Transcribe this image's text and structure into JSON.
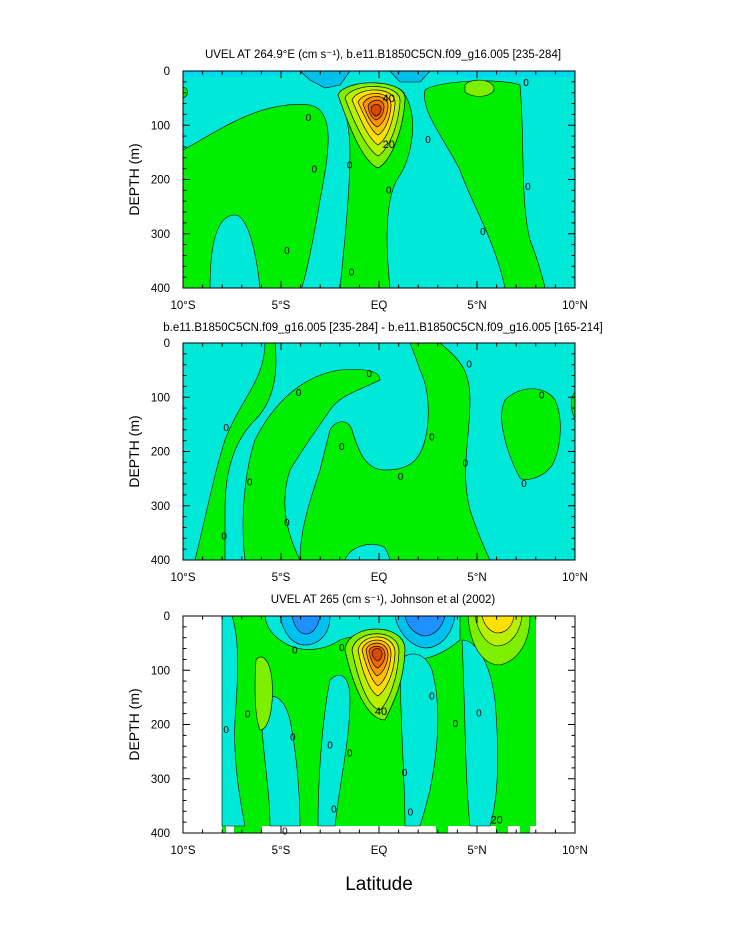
{
  "figure": {
    "xlabel": "Latitude"
  },
  "chart_data": [
    {
      "type": "heatmap",
      "title": "UVEL AT 264.9°E (cm s⁻¹), b.e11.B1850C5CN.f09_g16.005 [235-284]",
      "xlabel": "",
      "ylabel": "DEPTH (m)",
      "xlim": [
        -10,
        10
      ],
      "ylim": [
        0,
        400
      ],
      "y_inverted": true,
      "x_ticks": [
        "10°S",
        "5°S",
        "EQ",
        "5°N",
        "10°N"
      ],
      "y_ticks": [
        0,
        100,
        200,
        300,
        400
      ],
      "contour_interval": 10,
      "contour_labels": [
        "0",
        "0",
        "0",
        "0",
        "0",
        "0",
        "0",
        "0",
        "0",
        "0",
        "20",
        "40"
      ],
      "core": {
        "lat": 0,
        "depth": 75,
        "max_value": 70
      },
      "colors": {
        "neg_strong": "#00bfe8",
        "neg_weak": "#00e8d8",
        "zero": "#00ee00",
        "pos_low": "#7fef00",
        "pos_mid": "#ffe000",
        "pos_high": "#ff9000",
        "pos_max": "#e05000"
      }
    },
    {
      "type": "heatmap",
      "title": "b.e11.B1850C5CN.f09_g16.005 [235-284] - b.e11.B1850C5CN.f09_g16.005 [165-214]",
      "xlabel": "",
      "ylabel": "DEPTH (m)",
      "xlim": [
        -10,
        10
      ],
      "ylim": [
        0,
        400
      ],
      "y_inverted": true,
      "x_ticks": [
        "10°S",
        "5°S",
        "EQ",
        "5°N",
        "10°N"
      ],
      "y_ticks": [
        0,
        100,
        200,
        300,
        400
      ],
      "contour_labels": [
        "0",
        "0",
        "0",
        "0",
        "0",
        "0",
        "0",
        "0",
        "0",
        "0",
        "0",
        "0",
        "0"
      ],
      "colors": {
        "neg_weak": "#00e8d8",
        "zero": "#00ee00"
      }
    },
    {
      "type": "heatmap",
      "title": "UVEL AT 265 (cm s⁻¹), Johnson et al (2002)",
      "xlabel": "",
      "ylabel": "DEPTH (m)",
      "xlim": [
        -10,
        10
      ],
      "ylim": [
        0,
        400
      ],
      "y_inverted": true,
      "x_ticks": [
        "10°S",
        "5°S",
        "EQ",
        "5°N",
        "10°N"
      ],
      "y_ticks": [
        0,
        100,
        200,
        300,
        400
      ],
      "data_lat_range": [
        -8,
        8
      ],
      "contour_interval": 10,
      "contour_labels": [
        "0",
        "0",
        "0",
        "0",
        "0",
        "0",
        "0",
        "0",
        "0",
        "0",
        "0",
        "0",
        "0",
        "0",
        "20",
        "40"
      ],
      "core": {
        "lat": 0,
        "depth": 70,
        "max_value": 70
      },
      "colors": {
        "neg_strong": "#1e90ff",
        "neg_weak": "#00e8d8",
        "zero": "#00ee00",
        "pos_low": "#7fef00",
        "pos_mid": "#ffe000",
        "pos_high": "#ff9000",
        "pos_max": "#e05000"
      }
    }
  ]
}
